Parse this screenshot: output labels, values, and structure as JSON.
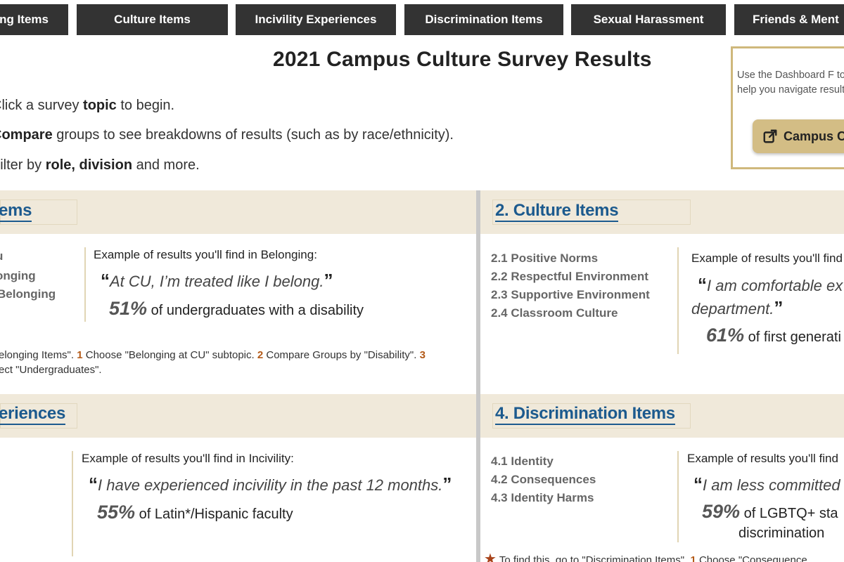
{
  "nav": {
    "tabs": [
      {
        "label": "ng Items"
      },
      {
        "label": "Culture Items"
      },
      {
        "label": "Incivility Experiences"
      },
      {
        "label": "Discrimination Items"
      },
      {
        "label": "Sexual Harassment"
      },
      {
        "label": "Friends & Ment"
      }
    ]
  },
  "header": {
    "title": "2021 Campus Culture Survey Results"
  },
  "instructions": [
    {
      "pre": "Click a survey ",
      "bold": "topic",
      "post": " to begin."
    },
    {
      "pre": "",
      "bold": "Compare",
      "post": " groups to see breakdowns of results (such as by race/ethnicity)."
    },
    {
      "pre": "Filter by ",
      "bold": "role, division",
      "post": " and more."
    }
  ],
  "guide": {
    "text": "Use the Dashboard F to help you navigate results.",
    "button_label": "Campus C",
    "border_color": "#cfb87c",
    "button_color": "#d3bd85"
  },
  "sections": {
    "belonging": {
      "title": "ems",
      "subtopics": [
        "u",
        "onging",
        "Belonging"
      ],
      "example_label": "Example of results you'll find in Belonging:",
      "quote": "At CU, I’m treated like I belong.",
      "stat_pct": "51%",
      "stat_text": "of undergraduates with a disability",
      "find_line1_a": "elonging Items\".  ",
      "find_n1": "1",
      "find_line1_b": " Choose \"Belonging at CU\" subtopic. ",
      "find_n2": "2",
      "find_line1_c": " Compare Groups by \"Disability\". ",
      "find_n3": "3",
      "find_line2": "ect \"Undergraduates\"."
    },
    "culture": {
      "title": "2. Culture Items",
      "subtopics": [
        "2.1 Positive Norms",
        "2.2 Respectful Environment",
        "2.3 Supportive Environment",
        "2.4 Classroom Culture"
      ],
      "example_label": "Example of results you'll find",
      "quote_line1": "I am comfortable ex",
      "quote_line2": "department.",
      "stat_pct": "61%",
      "stat_text": "of first generati"
    },
    "incivility": {
      "title": "eriences",
      "example_label": "Example of results you'll find in Incivility:",
      "quote": "I have experienced incivility in the past 12 months.",
      "stat_pct": "55%",
      "stat_text": "of Latin*/Hispanic faculty"
    },
    "discrimination": {
      "title": "4. Discrimination Items",
      "subtopics": [
        "4.1 Identity",
        "4.2 Consequences",
        "4.3 Identity Harms"
      ],
      "example_label": "Example of results you'll find",
      "quote": "I am less committed",
      "stat_pct": "59%",
      "stat_text": "of LGBTQ+ sta",
      "stat_text2": "discrimination",
      "find_text": "To find this, go to \"Discrimination Items\".  ",
      "find_n1": "1",
      "find_text2": " Choose \"Consequence"
    }
  },
  "colors": {
    "nav_bg": "#333333",
    "band_bg": "#f0e9da",
    "title_blue": "#1c5a8e",
    "step_number": "#b35a18",
    "star": "#a8431a"
  }
}
